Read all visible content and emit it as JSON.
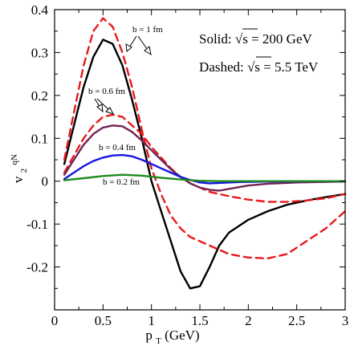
{
  "chart_data": {
    "type": "line",
    "xlabel": "p",
    "xlabel_subscript": "T",
    "xlabel_unit": " (GeV)",
    "ylabel": "v",
    "ylabel_subscript": "2",
    "ylabel_superscript": "qN",
    "xlim": [
      0,
      3
    ],
    "ylim": [
      -0.3,
      0.4
    ],
    "xticks": [
      0,
      0.5,
      1,
      1.5,
      2,
      2.5,
      3
    ],
    "xtick_labels": [
      "0",
      "0.5",
      "1",
      "1.5",
      "2",
      "2.5",
      "3"
    ],
    "yticks": [
      -0.2,
      -0.1,
      0,
      0.1,
      0.2,
      0.3,
      0.4
    ],
    "ytick_labels": [
      "-0.2",
      "-0.1",
      "0",
      "0.1",
      "0.2",
      "0.3",
      "0.4"
    ],
    "legend": {
      "solid_label": "Solid: ",
      "solid_energy": "√s",
      "solid_value": " = 200 GeV",
      "dashed_label": "Dashed: ",
      "dashed_energy": "√s",
      "dashed_value": " = 5.5 TeV",
      "placement": "top-right"
    },
    "annotations": [
      "b = 1 fm",
      "b = 0.6 fm",
      "b = 0.4 fm",
      "b = 0.2 fm"
    ],
    "series": [
      {
        "style": "solid",
        "color": "#000000",
        "points": [
          [
            0.1,
            0.04
          ],
          [
            0.2,
            0.13
          ],
          [
            0.3,
            0.22
          ],
          [
            0.4,
            0.29
          ],
          [
            0.5,
            0.33
          ],
          [
            0.6,
            0.32
          ],
          [
            0.7,
            0.27
          ],
          [
            0.8,
            0.19
          ],
          [
            0.9,
            0.1
          ],
          [
            1.0,
            0.0
          ],
          [
            1.1,
            -0.07
          ],
          [
            1.2,
            -0.14
          ],
          [
            1.3,
            -0.21
          ],
          [
            1.4,
            -0.25
          ],
          [
            1.5,
            -0.245
          ],
          [
            1.6,
            -0.2
          ],
          [
            1.7,
            -0.15
          ],
          [
            1.8,
            -0.12
          ],
          [
            2.0,
            -0.09
          ],
          [
            2.2,
            -0.07
          ],
          [
            2.4,
            -0.055
          ],
          [
            2.6,
            -0.045
          ],
          [
            2.8,
            -0.037
          ],
          [
            3.0,
            -0.03
          ]
        ]
      },
      {
        "style": "dashed",
        "color": "#e8191b",
        "points": [
          [
            0.1,
            0.05
          ],
          [
            0.2,
            0.16
          ],
          [
            0.3,
            0.27
          ],
          [
            0.4,
            0.35
          ],
          [
            0.5,
            0.38
          ],
          [
            0.6,
            0.36
          ],
          [
            0.7,
            0.3
          ],
          [
            0.8,
            0.22
          ],
          [
            0.9,
            0.12
          ],
          [
            1.0,
            0.03
          ],
          [
            1.1,
            -0.03
          ],
          [
            1.2,
            -0.08
          ],
          [
            1.3,
            -0.11
          ],
          [
            1.4,
            -0.13
          ],
          [
            1.6,
            -0.15
          ],
          [
            1.8,
            -0.17
          ],
          [
            2.0,
            -0.178
          ],
          [
            2.2,
            -0.18
          ],
          [
            2.4,
            -0.17
          ],
          [
            2.6,
            -0.14
          ],
          [
            2.8,
            -0.11
          ],
          [
            3.0,
            -0.07
          ]
        ]
      },
      {
        "style": "dashed",
        "color": "#e8191b",
        "points": [
          [
            0.1,
            0.02
          ],
          [
            0.2,
            0.06
          ],
          [
            0.3,
            0.1
          ],
          [
            0.4,
            0.13
          ],
          [
            0.5,
            0.15
          ],
          [
            0.6,
            0.155
          ],
          [
            0.7,
            0.15
          ],
          [
            0.8,
            0.13
          ],
          [
            0.9,
            0.11
          ],
          [
            1.0,
            0.08
          ],
          [
            1.1,
            0.055
          ],
          [
            1.2,
            0.03
          ],
          [
            1.3,
            0.01
          ],
          [
            1.4,
            -0.005
          ],
          [
            1.5,
            -0.015
          ],
          [
            1.6,
            -0.025
          ],
          [
            1.8,
            -0.035
          ],
          [
            2.0,
            -0.043
          ],
          [
            2.2,
            -0.048
          ],
          [
            2.4,
            -0.048
          ],
          [
            2.6,
            -0.045
          ],
          [
            2.8,
            -0.04
          ],
          [
            3.0,
            -0.03
          ]
        ]
      },
      {
        "style": "solid",
        "color": "#722556",
        "points": [
          [
            0.1,
            0.015
          ],
          [
            0.2,
            0.05
          ],
          [
            0.3,
            0.085
          ],
          [
            0.4,
            0.11
          ],
          [
            0.5,
            0.125
          ],
          [
            0.6,
            0.13
          ],
          [
            0.7,
            0.128
          ],
          [
            0.8,
            0.115
          ],
          [
            0.9,
            0.095
          ],
          [
            1.0,
            0.072
          ],
          [
            1.1,
            0.05
          ],
          [
            1.2,
            0.028
          ],
          [
            1.3,
            0.01
          ],
          [
            1.4,
            -0.005
          ],
          [
            1.5,
            -0.015
          ],
          [
            1.6,
            -0.02
          ],
          [
            1.7,
            -0.022
          ],
          [
            1.8,
            -0.018
          ],
          [
            2.0,
            -0.01
          ],
          [
            2.2,
            -0.006
          ],
          [
            2.5,
            -0.003
          ],
          [
            3.0,
            -0.001
          ]
        ]
      },
      {
        "style": "solid",
        "color": "#1515e0",
        "points": [
          [
            0.1,
            0.005
          ],
          [
            0.2,
            0.02
          ],
          [
            0.3,
            0.035
          ],
          [
            0.4,
            0.047
          ],
          [
            0.5,
            0.055
          ],
          [
            0.6,
            0.06
          ],
          [
            0.7,
            0.061
          ],
          [
            0.8,
            0.058
          ],
          [
            0.9,
            0.05
          ],
          [
            1.0,
            0.04
          ],
          [
            1.1,
            0.03
          ],
          [
            1.2,
            0.02
          ],
          [
            1.3,
            0.01
          ],
          [
            1.4,
            0.003
          ],
          [
            1.5,
            -0.003
          ],
          [
            1.6,
            -0.005
          ],
          [
            1.7,
            -0.004
          ],
          [
            1.9,
            -0.002
          ],
          [
            2.2,
            -0.001
          ],
          [
            3.0,
            0.0
          ]
        ]
      },
      {
        "style": "solid",
        "color": "#1d8a1d",
        "points": [
          [
            0.1,
            0.002
          ],
          [
            0.3,
            0.007
          ],
          [
            0.5,
            0.012
          ],
          [
            0.7,
            0.015
          ],
          [
            0.9,
            0.013
          ],
          [
            1.1,
            0.008
          ],
          [
            1.3,
            0.004
          ],
          [
            1.5,
            0.001
          ],
          [
            1.7,
            0.0
          ],
          [
            2.0,
            0.0
          ],
          [
            3.0,
            0.0
          ]
        ]
      }
    ]
  }
}
